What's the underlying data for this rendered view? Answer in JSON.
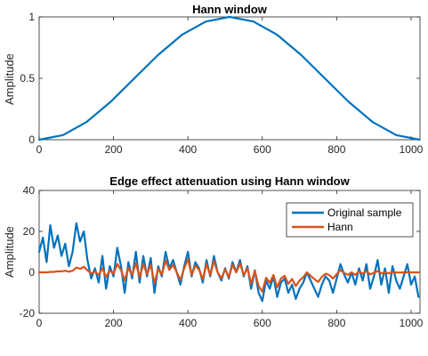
{
  "chart_data": [
    {
      "type": "line",
      "title": "Hann window",
      "ylabel": "Amplitude",
      "xlim": [
        0,
        1024
      ],
      "ylim": [
        0,
        1
      ],
      "xticks": [
        0,
        200,
        400,
        600,
        800,
        1000
      ],
      "yticks": [
        0,
        0.5,
        1
      ],
      "grid": false,
      "series": [
        {
          "color": "#0072BD",
          "x": [
            0,
            64,
            128,
            192,
            256,
            320,
            384,
            448,
            512,
            576,
            640,
            704,
            768,
            832,
            896,
            960,
            1023
          ],
          "y": [
            0,
            0.038,
            0.146,
            0.309,
            0.5,
            0.691,
            0.854,
            0.962,
            1,
            0.962,
            0.854,
            0.691,
            0.5,
            0.309,
            0.146,
            0.038,
            0
          ]
        }
      ]
    },
    {
      "type": "line",
      "title": "Edge effect attenuation using Hann window",
      "ylabel": "Amplitude",
      "xlim": [
        0,
        1024
      ],
      "ylim": [
        -20,
        40
      ],
      "xticks": [
        0,
        200,
        400,
        600,
        800,
        1000
      ],
      "yticks": [
        -20,
        0,
        20,
        40
      ],
      "grid": false,
      "legend": "top-right",
      "series": [
        {
          "name": "Original sample",
          "color": "#0072BD",
          "x": [
            0,
            10,
            20,
            30,
            40,
            50,
            60,
            70,
            80,
            90,
            100,
            110,
            120,
            130,
            140,
            150,
            160,
            170,
            180,
            190,
            200,
            210,
            220,
            230,
            240,
            250,
            260,
            270,
            280,
            290,
            300,
            310,
            320,
            330,
            340,
            350,
            360,
            370,
            380,
            390,
            400,
            410,
            420,
            430,
            440,
            450,
            460,
            470,
            480,
            490,
            500,
            510,
            520,
            530,
            540,
            550,
            560,
            570,
            580,
            590,
            600,
            610,
            620,
            630,
            640,
            650,
            660,
            670,
            680,
            690,
            700,
            710,
            720,
            730,
            740,
            750,
            760,
            770,
            780,
            790,
            800,
            810,
            820,
            830,
            840,
            850,
            860,
            870,
            880,
            890,
            900,
            910,
            920,
            930,
            940,
            950,
            960,
            970,
            980,
            990,
            1000,
            1010,
            1020
          ],
          "y": [
            10,
            17,
            5,
            23,
            12,
            18,
            8,
            14,
            3,
            10,
            24,
            15,
            20,
            6,
            -3,
            2,
            -5,
            8,
            -8,
            3,
            -2,
            12,
            3,
            -10,
            5,
            -3,
            10,
            -5,
            8,
            -2,
            7,
            -10,
            3,
            -2,
            10,
            2,
            6,
            0,
            -6,
            3,
            10,
            -2,
            5,
            2,
            -5,
            6,
            -2,
            8,
            0,
            -4,
            2,
            -3,
            5,
            0,
            6,
            -2,
            3,
            -8,
            1,
            -10,
            -14,
            -4,
            -8,
            -2,
            -12,
            -5,
            -3,
            -10,
            -6,
            -13,
            -8,
            -5,
            0,
            -4,
            -8,
            -12,
            -6,
            -2,
            -4,
            -10,
            -3,
            4,
            -1,
            -5,
            0,
            -6,
            2,
            -4,
            4,
            -8,
            -2,
            6,
            -6,
            2,
            -10,
            3,
            -4,
            -8,
            -2,
            4,
            -6,
            -2,
            -12
          ]
        },
        {
          "name": "Hann",
          "color": "#D95319",
          "x": [
            0,
            10,
            20,
            30,
            40,
            50,
            60,
            70,
            80,
            90,
            100,
            110,
            120,
            130,
            140,
            150,
            160,
            170,
            180,
            190,
            200,
            210,
            220,
            230,
            240,
            250,
            260,
            270,
            280,
            290,
            300,
            310,
            320,
            330,
            340,
            350,
            360,
            370,
            380,
            390,
            400,
            410,
            420,
            430,
            440,
            450,
            460,
            470,
            480,
            490,
            500,
            510,
            520,
            530,
            540,
            550,
            560,
            570,
            580,
            590,
            600,
            610,
            620,
            630,
            640,
            650,
            660,
            670,
            680,
            690,
            700,
            710,
            720,
            730,
            740,
            750,
            760,
            770,
            780,
            790,
            800,
            810,
            820,
            830,
            840,
            850,
            860,
            870,
            880,
            890,
            900,
            910,
            920,
            930,
            940,
            950,
            960,
            970,
            980,
            990,
            1000,
            1010,
            1020
          ],
          "y": [
            0,
            0,
            0,
            0.2,
            0.2,
            0.5,
            0.5,
            0.8,
            0.3,
            0.8,
            2.3,
            1.7,
            2.7,
            1,
            -0.6,
            0.4,
            -1.2,
            2,
            -2.3,
            0.9,
            -0.7,
            4.1,
            1.1,
            -3.9,
            2.1,
            -1.3,
            4.5,
            -2.4,
            4,
            -1,
            3.7,
            -5.4,
            1.7,
            -1.1,
            5.8,
            1.2,
            3.6,
            0,
            -3.8,
            1.9,
            6.5,
            -1.3,
            3.3,
            1.3,
            -3.4,
            4.1,
            -1.4,
            5.6,
            0,
            -2.9,
            1.4,
            -2.2,
            3.6,
            0,
            4.3,
            -1.4,
            2.1,
            -5.6,
            0.7,
            -6.8,
            -9.4,
            -2.6,
            -5.1,
            -1.3,
            -7.4,
            -3,
            -1.7,
            -5.6,
            -3.2,
            -6.7,
            -4,
            -2.4,
            0,
            -1.7,
            -3.3,
            -4.7,
            -2.2,
            -0.7,
            -1.3,
            -3,
            -0.9,
            1.1,
            -0.3,
            -1.2,
            0,
            -1.2,
            0.4,
            -0.7,
            0.6,
            -1,
            -0.2,
            0.6,
            -0.5,
            0.1,
            -0.5,
            0.1,
            -0.1,
            -0.1,
            0,
            0,
            0,
            0,
            0
          ]
        }
      ]
    }
  ]
}
